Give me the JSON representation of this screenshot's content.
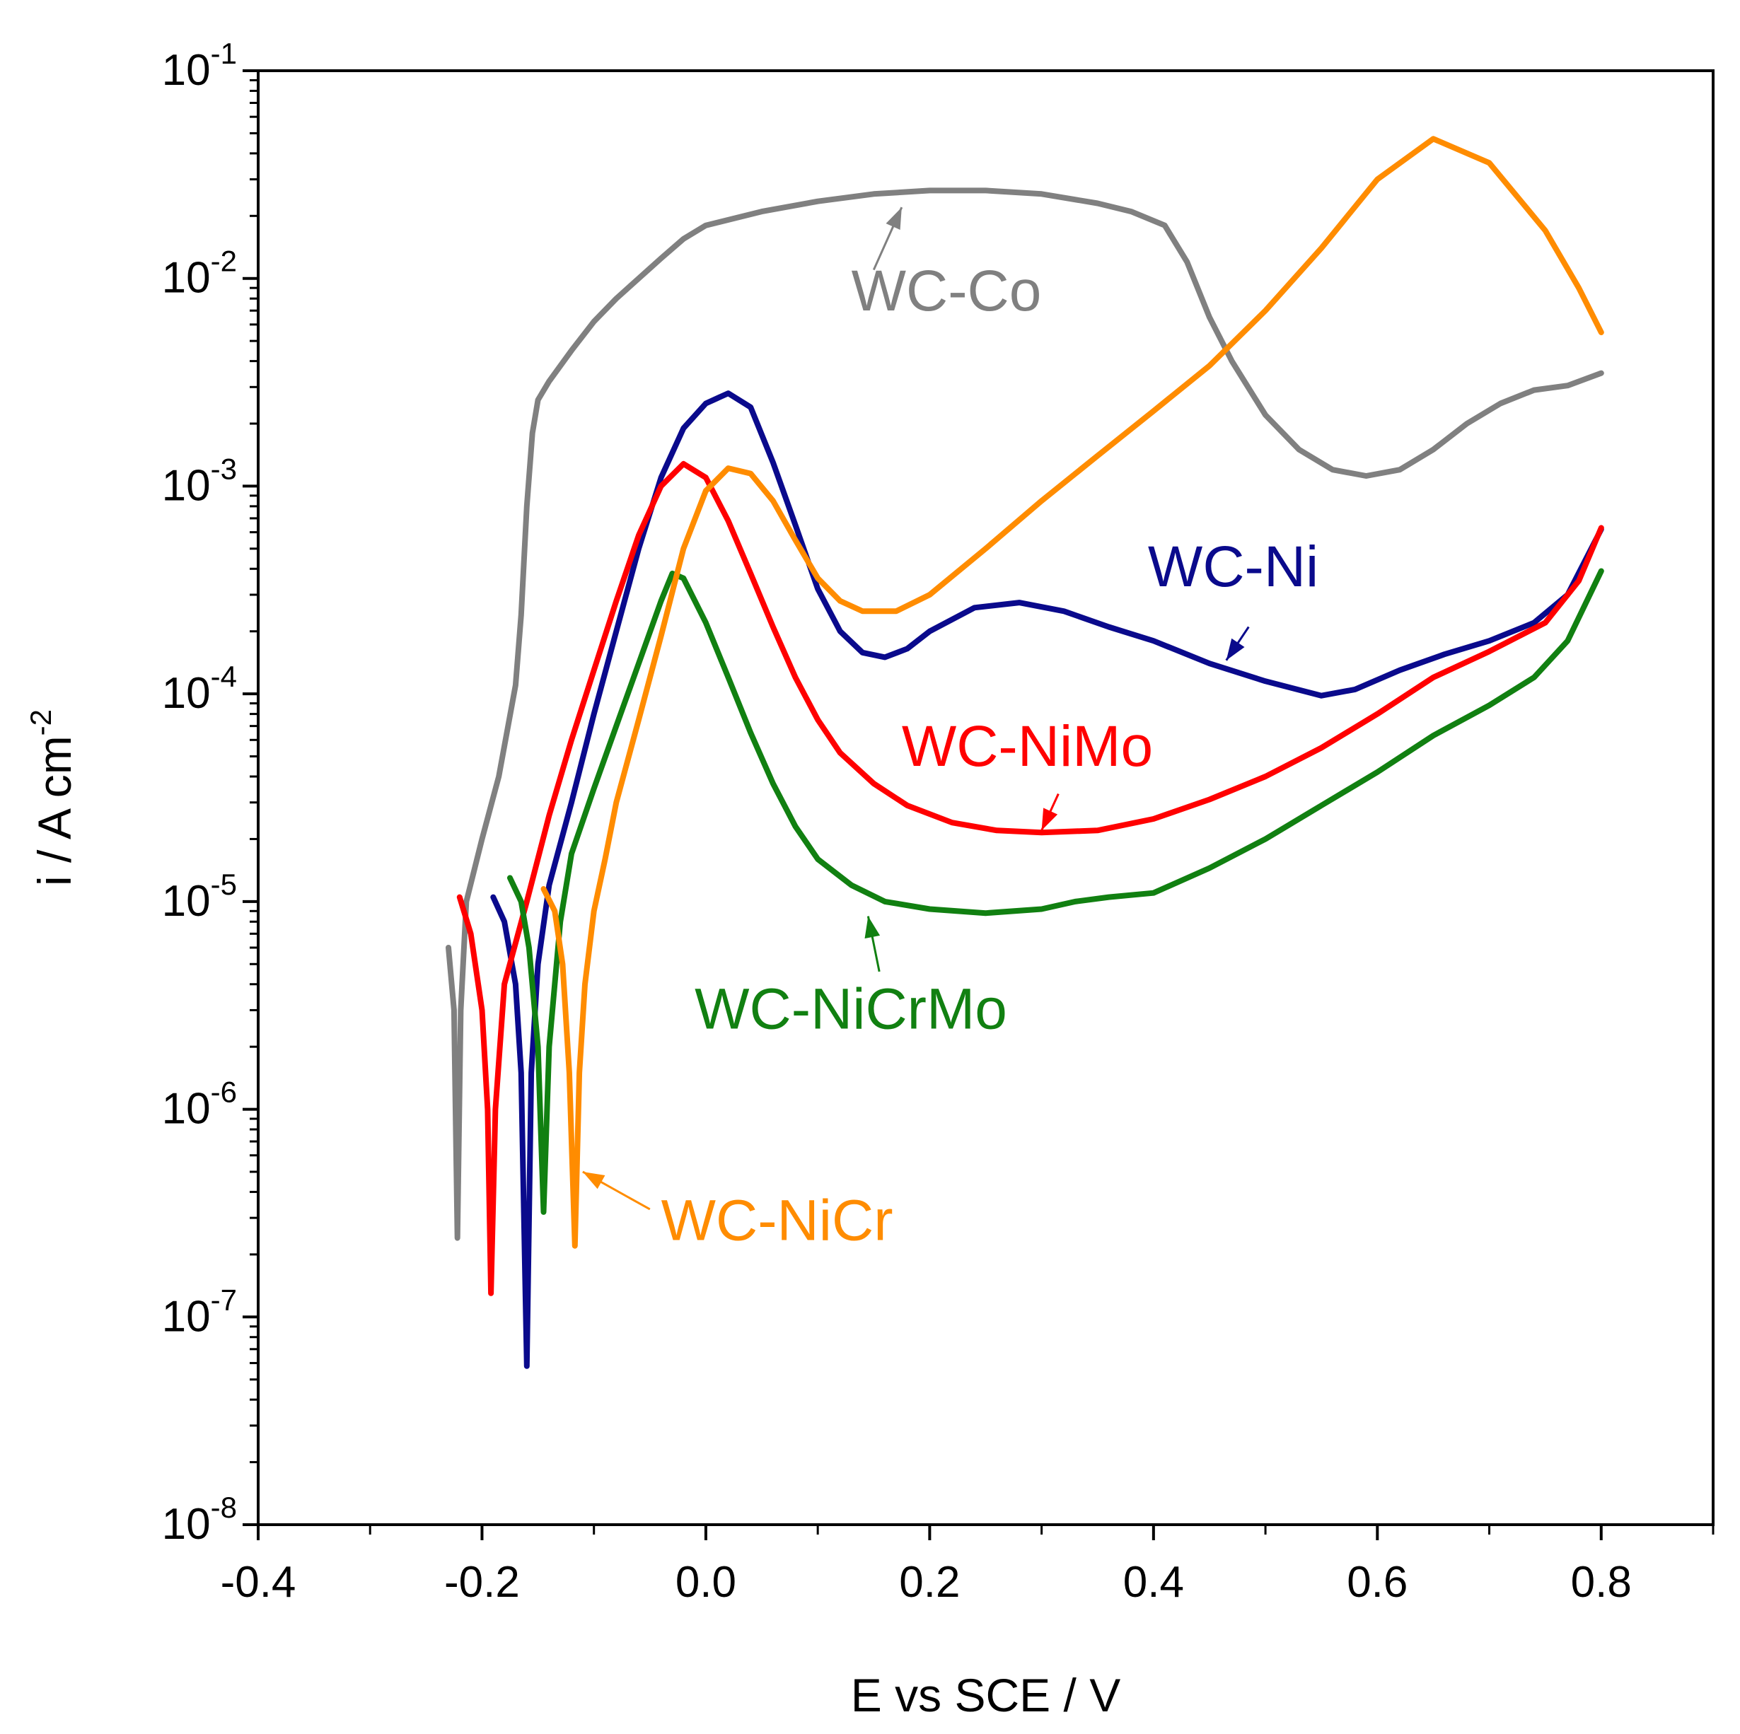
{
  "chart_data": {
    "type": "line",
    "xlabel": "E vs SCE / V",
    "ylabel": "i / A cm",
    "ylabel_sup": "-2",
    "xlim": [
      -0.4,
      0.9
    ],
    "ylim": [
      1e-08,
      0.1
    ],
    "y_scale": "log",
    "grid": false,
    "x_ticks": [
      {
        "value": -0.4,
        "label": "-0.4"
      },
      {
        "value": -0.2,
        "label": "-0.2"
      },
      {
        "value": 0.0,
        "label": "0.0"
      },
      {
        "value": 0.2,
        "label": "0.2"
      },
      {
        "value": 0.4,
        "label": "0.4"
      },
      {
        "value": 0.6,
        "label": "0.6"
      },
      {
        "value": 0.8,
        "label": "0.8"
      }
    ],
    "y_ticks": [
      {
        "value": 1e-08,
        "base": "10",
        "exp": "-8"
      },
      {
        "value": 1e-07,
        "base": "10",
        "exp": "-7"
      },
      {
        "value": 1e-06,
        "base": "10",
        "exp": "-6"
      },
      {
        "value": 1e-05,
        "base": "10",
        "exp": "-5"
      },
      {
        "value": 0.0001,
        "base": "10",
        "exp": "-4"
      },
      {
        "value": 0.001,
        "base": "10",
        "exp": "-3"
      },
      {
        "value": 0.01,
        "base": "10",
        "exp": "-2"
      },
      {
        "value": 0.1,
        "base": "10",
        "exp": "-1"
      }
    ],
    "series": [
      {
        "name": "WC-Co",
        "color": "#808080",
        "label_pos": {
          "x": 0.13,
          "y": 0.007
        },
        "arrow": {
          "from": [
            0.15,
            0.011
          ],
          "to": [
            0.175,
            0.022
          ]
        },
        "points": [
          [
            -0.23,
            6e-06
          ],
          [
            -0.225,
            3e-06
          ],
          [
            -0.222,
            2.4e-07
          ],
          [
            -0.219,
            3e-06
          ],
          [
            -0.214,
            1e-05
          ],
          [
            -0.2,
            2e-05
          ],
          [
            -0.185,
            4e-05
          ],
          [
            -0.17,
            0.00011
          ],
          [
            -0.165,
            0.00024
          ],
          [
            -0.16,
            0.0008
          ],
          [
            -0.155,
            0.0018
          ],
          [
            -0.15,
            0.0026
          ],
          [
            -0.14,
            0.0032
          ],
          [
            -0.12,
            0.0045
          ],
          [
            -0.1,
            0.0062
          ],
          [
            -0.08,
            0.008
          ],
          [
            -0.06,
            0.01
          ],
          [
            -0.04,
            0.0125
          ],
          [
            -0.02,
            0.0155
          ],
          [
            0.0,
            0.018
          ],
          [
            0.05,
            0.021
          ],
          [
            0.1,
            0.0235
          ],
          [
            0.15,
            0.0255
          ],
          [
            0.2,
            0.0265
          ],
          [
            0.25,
            0.0265
          ],
          [
            0.3,
            0.0255
          ],
          [
            0.35,
            0.023
          ],
          [
            0.38,
            0.021
          ],
          [
            0.41,
            0.018
          ],
          [
            0.43,
            0.012
          ],
          [
            0.45,
            0.0065
          ],
          [
            0.47,
            0.004
          ],
          [
            0.5,
            0.0022
          ],
          [
            0.53,
            0.0015
          ],
          [
            0.56,
            0.0012
          ],
          [
            0.59,
            0.00112
          ],
          [
            0.62,
            0.0012
          ],
          [
            0.65,
            0.0015
          ],
          [
            0.68,
            0.002
          ],
          [
            0.71,
            0.0025
          ],
          [
            0.74,
            0.0029
          ],
          [
            0.77,
            0.00305
          ],
          [
            0.8,
            0.0035
          ]
        ]
      },
      {
        "name": "WC-Ni",
        "color": "#0a0a8c",
        "label_pos": {
          "x": 0.395,
          "y": 0.00033
        },
        "arrow": {
          "from": [
            0.485,
            0.00021
          ],
          "to": [
            0.465,
            0.000145
          ]
        },
        "points": [
          [
            -0.19,
            1.05e-05
          ],
          [
            -0.18,
            8e-06
          ],
          [
            -0.17,
            4e-06
          ],
          [
            -0.165,
            1.5e-06
          ],
          [
            -0.16,
            5.8e-08
          ],
          [
            -0.156,
            1.5e-06
          ],
          [
            -0.15,
            5e-06
          ],
          [
            -0.14,
            1.2e-05
          ],
          [
            -0.12,
            3e-05
          ],
          [
            -0.1,
            8e-05
          ],
          [
            -0.08,
            0.0002
          ],
          [
            -0.06,
            0.0005
          ],
          [
            -0.04,
            0.0011
          ],
          [
            -0.02,
            0.0019
          ],
          [
            0.0,
            0.0025
          ],
          [
            0.02,
            0.0028
          ],
          [
            0.04,
            0.0024
          ],
          [
            0.06,
            0.0013
          ],
          [
            0.08,
            0.00065
          ],
          [
            0.1,
            0.00032
          ],
          [
            0.12,
            0.0002
          ],
          [
            0.14,
            0.000158
          ],
          [
            0.16,
            0.00015
          ],
          [
            0.18,
            0.000165
          ],
          [
            0.2,
            0.0002
          ],
          [
            0.24,
            0.00026
          ],
          [
            0.28,
            0.000275
          ],
          [
            0.32,
            0.00025
          ],
          [
            0.36,
            0.00021
          ],
          [
            0.4,
            0.00018
          ],
          [
            0.45,
            0.00014
          ],
          [
            0.5,
            0.000115
          ],
          [
            0.55,
            9.8e-05
          ],
          [
            0.58,
            0.000105
          ],
          [
            0.62,
            0.00013
          ],
          [
            0.66,
            0.000155
          ],
          [
            0.7,
            0.00018
          ],
          [
            0.74,
            0.00022
          ],
          [
            0.77,
            0.0003
          ],
          [
            0.8,
            0.00062
          ]
        ]
      },
      {
        "name": "WC-NiMo",
        "color": "#ff0000",
        "label_pos": {
          "x": 0.175,
          "y": 4.5e-05
        },
        "arrow": {
          "from": [
            0.315,
            3.3e-05
          ],
          "to": [
            0.3,
            2.2e-05
          ]
        },
        "points": [
          [
            -0.22,
            1.05e-05
          ],
          [
            -0.21,
            7e-06
          ],
          [
            -0.2,
            3e-06
          ],
          [
            -0.195,
            1e-06
          ],
          [
            -0.192,
            1.3e-07
          ],
          [
            -0.188,
            1e-06
          ],
          [
            -0.18,
            4e-06
          ],
          [
            -0.16,
            1e-05
          ],
          [
            -0.14,
            2.6e-05
          ],
          [
            -0.12,
            6e-05
          ],
          [
            -0.1,
            0.00013
          ],
          [
            -0.08,
            0.00028
          ],
          [
            -0.06,
            0.00058
          ],
          [
            -0.04,
            0.001
          ],
          [
            -0.02,
            0.00128
          ],
          [
            0.0,
            0.0011
          ],
          [
            0.02,
            0.00068
          ],
          [
            0.04,
            0.00038
          ],
          [
            0.06,
            0.00021
          ],
          [
            0.08,
            0.00012
          ],
          [
            0.1,
            7.5e-05
          ],
          [
            0.12,
            5.2e-05
          ],
          [
            0.15,
            3.7e-05
          ],
          [
            0.18,
            2.9e-05
          ],
          [
            0.22,
            2.4e-05
          ],
          [
            0.26,
            2.2e-05
          ],
          [
            0.3,
            2.15e-05
          ],
          [
            0.35,
            2.2e-05
          ],
          [
            0.4,
            2.5e-05
          ],
          [
            0.45,
            3.1e-05
          ],
          [
            0.5,
            4e-05
          ],
          [
            0.55,
            5.5e-05
          ],
          [
            0.6,
            8e-05
          ],
          [
            0.65,
            0.00012
          ],
          [
            0.7,
            0.00016
          ],
          [
            0.75,
            0.00022
          ],
          [
            0.78,
            0.00035
          ],
          [
            0.8,
            0.00063
          ]
        ]
      },
      {
        "name": "WC-NiCrMo",
        "color": "#118011",
        "label_pos": {
          "x": -0.01,
          "y": 2.45e-06
        },
        "arrow": {
          "from": [
            0.155,
            4.6e-06
          ],
          "to": [
            0.145,
            8.5e-06
          ]
        },
        "points": [
          [
            -0.175,
            1.3e-05
          ],
          [
            -0.165,
            1e-05
          ],
          [
            -0.158,
            6e-06
          ],
          [
            -0.15,
            2e-06
          ],
          [
            -0.145,
            3.2e-07
          ],
          [
            -0.14,
            2e-06
          ],
          [
            -0.13,
            8e-06
          ],
          [
            -0.12,
            1.7e-05
          ],
          [
            -0.1,
            3.5e-05
          ],
          [
            -0.08,
            7e-05
          ],
          [
            -0.06,
            0.00014
          ],
          [
            -0.04,
            0.00028
          ],
          [
            -0.03,
            0.00038
          ],
          [
            -0.02,
            0.00036
          ],
          [
            0.0,
            0.00022
          ],
          [
            0.02,
            0.00012
          ],
          [
            0.04,
            6.5e-05
          ],
          [
            0.06,
            3.7e-05
          ],
          [
            0.08,
            2.3e-05
          ],
          [
            0.1,
            1.6e-05
          ],
          [
            0.13,
            1.2e-05
          ],
          [
            0.16,
            1e-05
          ],
          [
            0.2,
            9.2e-06
          ],
          [
            0.25,
            8.8e-06
          ],
          [
            0.3,
            9.2e-06
          ],
          [
            0.33,
            1e-05
          ],
          [
            0.36,
            1.05e-05
          ],
          [
            0.4,
            1.1e-05
          ],
          [
            0.45,
            1.45e-05
          ],
          [
            0.5,
            2e-05
          ],
          [
            0.55,
            2.9e-05
          ],
          [
            0.6,
            4.2e-05
          ],
          [
            0.65,
            6.3e-05
          ],
          [
            0.7,
            8.8e-05
          ],
          [
            0.74,
            0.00012
          ],
          [
            0.77,
            0.00018
          ],
          [
            0.8,
            0.00039
          ]
        ]
      },
      {
        "name": "WC-NiCr",
        "color": "#ff8c00",
        "label_pos": {
          "x": -0.04,
          "y": 2.35e-07
        },
        "arrow": {
          "from": [
            -0.05,
            3.3e-07
          ],
          "to": [
            -0.11,
            5e-07
          ]
        },
        "points": [
          [
            -0.145,
            1.15e-05
          ],
          [
            -0.135,
            9e-06
          ],
          [
            -0.128,
            5e-06
          ],
          [
            -0.122,
            1.5e-06
          ],
          [
            -0.117,
            2.2e-07
          ],
          [
            -0.113,
            1.5e-06
          ],
          [
            -0.108,
            4e-06
          ],
          [
            -0.1,
            9e-06
          ],
          [
            -0.09,
            1.6e-05
          ],
          [
            -0.08,
            3e-05
          ],
          [
            -0.06,
            7.5e-05
          ],
          [
            -0.04,
            0.00019
          ],
          [
            -0.02,
            0.0005
          ],
          [
            0.0,
            0.00095
          ],
          [
            0.02,
            0.00122
          ],
          [
            0.04,
            0.00115
          ],
          [
            0.06,
            0.00085
          ],
          [
            0.08,
            0.00055
          ],
          [
            0.1,
            0.00036
          ],
          [
            0.12,
            0.00028
          ],
          [
            0.14,
            0.00025
          ],
          [
            0.17,
            0.00025
          ],
          [
            0.2,
            0.0003
          ],
          [
            0.25,
            0.0005
          ],
          [
            0.3,
            0.00085
          ],
          [
            0.35,
            0.0014
          ],
          [
            0.4,
            0.0023
          ],
          [
            0.45,
            0.0038
          ],
          [
            0.5,
            0.007
          ],
          [
            0.55,
            0.014
          ],
          [
            0.6,
            0.03
          ],
          [
            0.65,
            0.047
          ],
          [
            0.7,
            0.036
          ],
          [
            0.75,
            0.017
          ],
          [
            0.78,
            0.009
          ],
          [
            0.8,
            0.0055
          ]
        ]
      }
    ]
  }
}
